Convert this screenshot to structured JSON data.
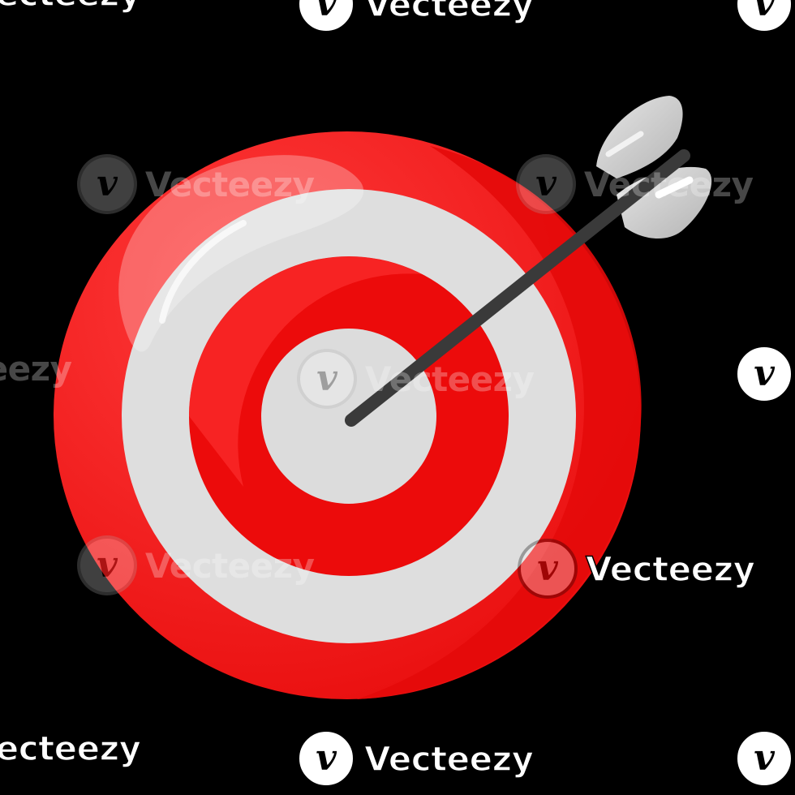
{
  "image": {
    "subject": "target-with-arrow",
    "colors": {
      "background": "#000000",
      "red_outer": "#f01818",
      "red_light": "#ff3333",
      "ring_white": "#dedede",
      "ring_red": "#ec0b0b",
      "arrow_shaft": "#3a3a3a",
      "fletching": "#c8c8c8"
    }
  },
  "watermark": {
    "brand": "Vecteezy",
    "logo_glyph": "v"
  }
}
